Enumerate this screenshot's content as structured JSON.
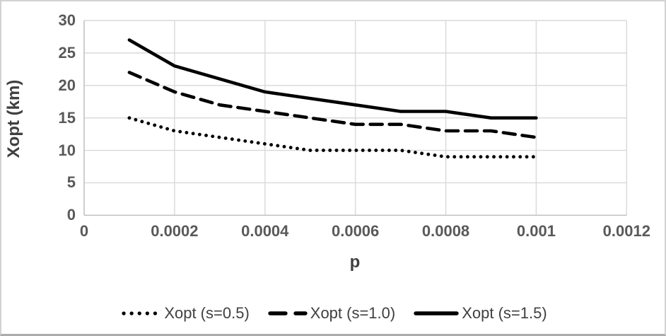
{
  "chart_data": {
    "type": "line",
    "x": [
      0.0001,
      0.0002,
      0.0003,
      0.0004,
      0.0005,
      0.0006,
      0.0007,
      0.0008,
      0.0009,
      0.001
    ],
    "series": [
      {
        "name": "Xopt (s=0.5)",
        "style": "dotted",
        "color": "#000000",
        "values": [
          15,
          13,
          12,
          11,
          10,
          10,
          10,
          9,
          9,
          9
        ]
      },
      {
        "name": "Xopt (s=1.0)",
        "style": "dashed",
        "color": "#000000",
        "values": [
          22,
          19,
          17,
          16,
          15,
          14,
          14,
          13,
          13,
          12
        ]
      },
      {
        "name": "Xopt (s=1.5)",
        "style": "solid",
        "color": "#000000",
        "values": [
          27,
          23,
          21,
          19,
          18,
          17,
          16,
          16,
          15,
          15
        ]
      }
    ],
    "title": "",
    "xlabel": "p",
    "ylabel": "Xopt (km)",
    "xlim": [
      0,
      0.0012
    ],
    "ylim": [
      0,
      30
    ],
    "xticks": {
      "values": [
        0,
        0.0002,
        0.0004,
        0.0006,
        0.0008,
        0.001,
        0.0012
      ],
      "labels": [
        "0",
        "0.0002",
        "0.0004",
        "0.0006",
        "0.0008",
        "0.001",
        "0.0012"
      ]
    },
    "yticks": {
      "values": [
        0,
        5,
        10,
        15,
        20,
        25,
        30
      ],
      "labels": [
        "0",
        "5",
        "10",
        "15",
        "20",
        "25",
        "30"
      ]
    },
    "grid": true,
    "legend_position": "bottom",
    "colors": {
      "line": "#000000",
      "gridline": "#d9d9d9",
      "axis_line": "#bfbfbf",
      "tick_text": "#595959",
      "title_text": "#404040",
      "background": "#ffffff"
    }
  }
}
